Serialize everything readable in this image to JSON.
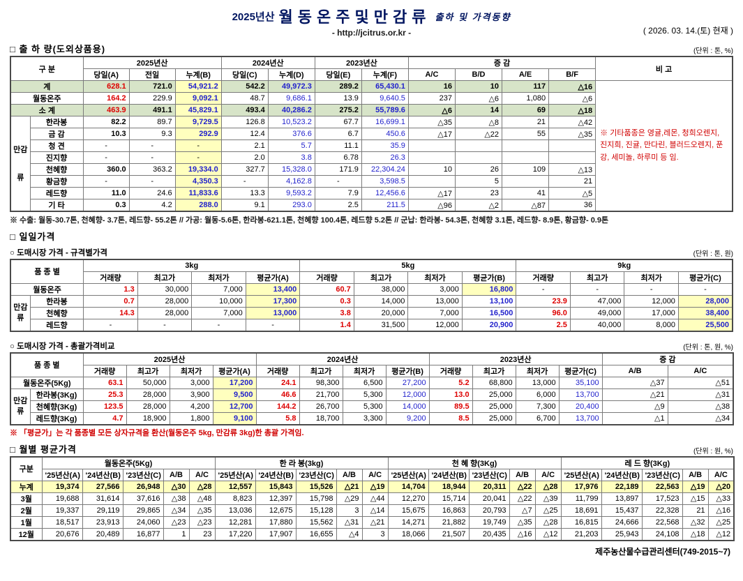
{
  "header": {
    "year": "2025년산",
    "title": "월동온주및만감류",
    "subtitle": "출하 및 가격동향",
    "url": "- http://jcitrus.or.kr -",
    "date": "( 2026. 03. 14.(토) 현재 )"
  },
  "colors": {
    "title_navy": "#001560",
    "accent_red": "#dd0000",
    "accent_blue": "#2222cc",
    "row_green": "#d7e4c8",
    "cell_yellow": "#ffffbe"
  },
  "shipment": {
    "title": "□ 출 하 량(도외상품용)",
    "unit": "(단위 : 톤, %)",
    "head": {
      "gubun": "구  분",
      "y2025": "2025년산",
      "y2024": "2024년산",
      "y2023": "2023년산",
      "diff": "증    감",
      "bigo": "비  고",
      "sub": [
        "당일(A)",
        "전일",
        "누계(B)",
        "당일(C)",
        "누계(D)",
        "당일(E)",
        "누계(F)",
        "A/C",
        "B/D",
        "A/E",
        "B/F"
      ]
    },
    "group_label": "만감류",
    "rows": [
      {
        "label": "계",
        "type": "total",
        "cells": [
          "628.1",
          "721.0",
          "54,921.2",
          "542.2",
          "49,972.3",
          "289.2",
          "65,430.1",
          "16",
          "10",
          "117",
          "△16"
        ]
      },
      {
        "label": "월동온주",
        "type": "plain",
        "cells": [
          "164.2",
          "229.9",
          "9,092.1",
          "48.7",
          "9,686.1",
          "13.9",
          "9,640.5",
          "237",
          "△6",
          "1,080",
          "△6"
        ]
      },
      {
        "label": "소  계",
        "type": "subtotal",
        "cells": [
          "463.9",
          "491.1",
          "45,829.1",
          "493.4",
          "40,286.2",
          "275.2",
          "55,789.6",
          "△6",
          "14",
          "69",
          "△18"
        ]
      },
      {
        "label": "한라봉",
        "type": "item",
        "cells": [
          "82.2",
          "89.7",
          "9,729.5",
          "126.8",
          "10,523.2",
          "67.7",
          "16,699.1",
          "△35",
          "△8",
          "21",
          "△42"
        ]
      },
      {
        "label": "금  감",
        "type": "item",
        "cells": [
          "10.3",
          "9.3",
          "292.9",
          "12.4",
          "376.6",
          "6.7",
          "450.6",
          "△17",
          "△22",
          "55",
          "△35"
        ]
      },
      {
        "label": "청  견",
        "type": "item",
        "cells": [
          "-",
          "-",
          "-",
          "2.1",
          "5.7",
          "11.1",
          "35.9",
          "",
          "",
          "",
          ""
        ]
      },
      {
        "label": "진지향",
        "type": "item",
        "cells": [
          "-",
          "-",
          "-",
          "2.0",
          "3.8",
          "6.78",
          "26.3",
          "",
          "",
          "",
          ""
        ]
      },
      {
        "label": "천혜향",
        "type": "item",
        "cells": [
          "360.0",
          "363.2",
          "19,334.0",
          "327.7",
          "15,328.0",
          "171.9",
          "22,304.24",
          "10",
          "26",
          "109",
          "△13"
        ]
      },
      {
        "label": "황금향",
        "type": "item",
        "cells": [
          "-",
          "-",
          "4,350.3",
          "-",
          "4,162.8",
          "-",
          "3,598.5",
          "",
          "5",
          "",
          "21"
        ]
      },
      {
        "label": "레드향",
        "type": "item",
        "cells": [
          "11.0",
          "24.6",
          "11,833.6",
          "13.3",
          "9,593.2",
          "7.9",
          "12,456.6",
          "△17",
          "23",
          "41",
          "△5"
        ]
      },
      {
        "label": "기  타",
        "type": "item",
        "cells": [
          "0.3",
          "4.2",
          "288.0",
          "9.1",
          "293.0",
          "2.5",
          "211.5",
          "△96",
          "△2",
          "△87",
          "36"
        ]
      }
    ],
    "bigo_note": "※ 기타품종은 영귤,레몬, 청희오렌지, 진지희, 진귤, 만다린, 블러드오렌지, 푼강, 세미놀, 하루미 등 임.",
    "footnote": "※ 수출: 월동-30.7톤, 천혜향- 3.7톤, 레드향- 55.2톤  //  가공: 월동-5.6톤, 한라봉-621.1톤, 천혜향 100.4톤, 레드향 5.2톤 //  군납: 한라봉- 54.3톤, 천혜향 3.1톤, 레드향- 8.9톤, 황금향- 0.9톤"
  },
  "daily": {
    "title": "□ 일일가격",
    "sub_title": "○ 도매시장 가격 - 규격별가격",
    "unit": "(단위 : 톤, 원)",
    "head": {
      "pum": "품 종 별",
      "groups": [
        "3kg",
        "5kg",
        "9kg"
      ],
      "sub": [
        "거래량",
        "최고가",
        "최저가",
        "평균가(A)",
        "거래량",
        "최고가",
        "최저가",
        "평균가(B)",
        "거래량",
        "최고가",
        "최저가",
        "평균가(C)"
      ]
    },
    "group_label": "만감류",
    "rows": [
      {
        "label": "월동온주",
        "type": "plain",
        "hl": [
          3,
          7
        ],
        "cells": [
          "1.3",
          "30,000",
          "7,000",
          "13,400",
          "60.7",
          "38,000",
          "3,000",
          "16,800",
          "-",
          "-",
          "-",
          "-"
        ]
      },
      {
        "label": "한라봉",
        "type": "item",
        "hl": [
          3,
          11
        ],
        "cells": [
          "0.7",
          "28,000",
          "10,000",
          "17,300",
          "0.3",
          "14,000",
          "13,000",
          "13,100",
          "23.9",
          "47,000",
          "12,000",
          "28,000"
        ]
      },
      {
        "label": "천혜향",
        "type": "item",
        "hl": [
          3,
          11
        ],
        "cells": [
          "14.3",
          "28,000",
          "7,000",
          "13,000",
          "3.8",
          "20,000",
          "7,000",
          "16,500",
          "96.0",
          "49,000",
          "17,000",
          "38,400"
        ]
      },
      {
        "label": "레드향",
        "type": "item",
        "hl": [
          11
        ],
        "cells": [
          "-",
          "-",
          "-",
          "-",
          "1.4",
          "31,500",
          "12,000",
          "20,900",
          "2.5",
          "40,000",
          "8,000",
          "25,500"
        ]
      }
    ]
  },
  "overall": {
    "sub_title": "○ 도매시장 가격 - 총괄가격비교",
    "unit": "(단위 : 톤, 원, %)",
    "head": {
      "pum": "품 종 별",
      "groups": [
        "2025년산",
        "2024년산",
        "2023년산",
        "증    감"
      ],
      "sub": [
        "거래량",
        "최고가",
        "최저가",
        "평균가(A)",
        "거래량",
        "최고가",
        "최저가",
        "평균가(B)",
        "거래량",
        "최고가",
        "최저가",
        "평균가(C)",
        "A/B",
        "A/C"
      ]
    },
    "group_label": "만감류",
    "rows": [
      {
        "label": "월동온주(5Kg)",
        "type": "plain",
        "hl": [
          3
        ],
        "cells": [
          "63.1",
          "50,000",
          "3,000",
          "17,200",
          "24.1",
          "98,300",
          "6,500",
          "27,200",
          "5.2",
          "68,800",
          "13,000",
          "35,100",
          "△37",
          "△51"
        ]
      },
      {
        "label": "한라봉(3Kg)",
        "type": "item",
        "hl": [
          3
        ],
        "cells": [
          "25.3",
          "28,000",
          "3,900",
          "9,500",
          "46.6",
          "21,700",
          "5,300",
          "12,000",
          "13.0",
          "25,000",
          "6,000",
          "13,700",
          "△21",
          "△31"
        ]
      },
      {
        "label": "천혜향(3Kg)",
        "type": "item",
        "hl": [
          3
        ],
        "cells": [
          "123.5",
          "28,000",
          "4,200",
          "12,700",
          "144.2",
          "26,700",
          "5,300",
          "14,000",
          "89.5",
          "25,000",
          "7,300",
          "20,400",
          "△9",
          "△38"
        ]
      },
      {
        "label": "레드향(3Kg)",
        "type": "item",
        "hl": [
          3
        ],
        "cells": [
          "4.7",
          "18,900",
          "1,800",
          "9,100",
          "5.8",
          "18,700",
          "3,300",
          "9,200",
          "8.5",
          "25,000",
          "6,700",
          "13,700",
          "△1",
          "△34"
        ]
      }
    ],
    "footnote": "※ 「평균가」는 각 품종별 모든 상자규격을 환산(월동온주 5kg, 만감류 3kg)한 총괄 가격임."
  },
  "monthly": {
    "title": "□ 월별 평균가격",
    "unit": "(단위 : 원, %)",
    "head": {
      "gubun": "구분",
      "groups": [
        "월동온주(5Kg)",
        "한 라 봉(3kg)",
        "천 혜 향(3Kg)",
        "레 드 향(3Kg)"
      ],
      "sub": [
        "'25년산(A)",
        "'24년산(B)",
        "'23년산(C)",
        "A/B",
        "A/C"
      ]
    },
    "rows": [
      {
        "label": "누계",
        "type": "accent",
        "cells": [
          "19,374",
          "27,566",
          "26,948",
          "△30",
          "△28",
          "12,557",
          "15,843",
          "15,526",
          "△21",
          "△19",
          "14,704",
          "18,944",
          "20,311",
          "△22",
          "△28",
          "17,976",
          "22,189",
          "22,563",
          "△19",
          "△20"
        ]
      },
      {
        "label": "3월",
        "type": "plain",
        "cells": [
          "19,688",
          "31,614",
          "37,616",
          "△38",
          "△48",
          "8,823",
          "12,397",
          "15,798",
          "△29",
          "△44",
          "12,270",
          "15,714",
          "20,041",
          "△22",
          "△39",
          "11,799",
          "13,897",
          "17,523",
          "△15",
          "△33"
        ]
      },
      {
        "label": "2월",
        "type": "plain",
        "cells": [
          "19,337",
          "29,119",
          "29,865",
          "△34",
          "△35",
          "13,036",
          "12,675",
          "15,128",
          "3",
          "△14",
          "15,675",
          "16,863",
          "20,793",
          "△7",
          "△25",
          "18,691",
          "15,437",
          "22,328",
          "21",
          "△16"
        ]
      },
      {
        "label": "1월",
        "type": "plain",
        "cells": [
          "18,517",
          "23,913",
          "24,060",
          "△23",
          "△23",
          "12,281",
          "17,880",
          "15,562",
          "△31",
          "△21",
          "14,271",
          "21,882",
          "19,749",
          "△35",
          "△28",
          "16,815",
          "24,666",
          "22,568",
          "△32",
          "△25"
        ]
      },
      {
        "label": "12월",
        "type": "plain",
        "cells": [
          "20,676",
          "20,489",
          "16,877",
          "1",
          "23",
          "17,220",
          "17,907",
          "16,655",
          "△4",
          "3",
          "18,066",
          "21,507",
          "20,435",
          "△16",
          "△12",
          "21,203",
          "25,943",
          "24,108",
          "△18",
          "△12"
        ]
      }
    ]
  },
  "footer": {
    "center_name": "제주농산물수급관리센터(749-2015~7)"
  }
}
